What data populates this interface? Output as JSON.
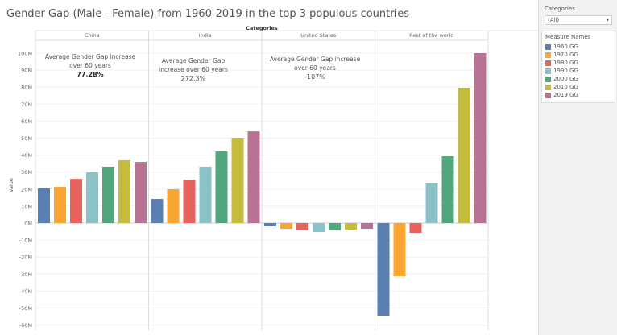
{
  "chart_data": {
    "type": "bar",
    "title": "Gender Gap (Male - Female) from 1960-2019 in the top 3 populous countries",
    "column_header": "Categories",
    "ylabel": "Value",
    "ylim": [
      -60,
      100
    ],
    "yticks": [
      "100M",
      "90M",
      "80M",
      "70M",
      "60M",
      "50M",
      "40M",
      "30M",
      "20M",
      "10M",
      "0M",
      "-10M",
      "-20M",
      "-30M",
      "-40M",
      "-50M",
      "-60M"
    ],
    "grid": true,
    "legend_position": "right",
    "categories": [
      "China",
      "India",
      "United States",
      "Rest of the world"
    ],
    "series": [
      {
        "name": "1960 GG",
        "color": "#5b7fb1",
        "values": [
          20.4,
          14.2,
          -1.9,
          -54.5
        ]
      },
      {
        "name": "1970 GG",
        "color": "#f9a531",
        "values": [
          21.3,
          19.9,
          -3.3,
          -31.3
        ]
      },
      {
        "name": "1980 GG",
        "color": "#e8625f",
        "values": [
          26,
          25.6,
          -4.3,
          -5.7
        ]
      },
      {
        "name": "1990 GG",
        "color": "#8bc2c8",
        "values": [
          29.9,
          33.2,
          -5.2,
          23.7
        ]
      },
      {
        "name": "2000 GG",
        "color": "#52a67e",
        "values": [
          33.2,
          42.2,
          -4.3,
          39.3
        ]
      },
      {
        "name": "2010 GG",
        "color": "#c5bb3e",
        "values": [
          37,
          50.2,
          -3.8,
          79.6
        ]
      },
      {
        "name": "2019 GG",
        "color": "#b87394",
        "values": [
          36,
          54,
          -3.3,
          100
        ]
      }
    ],
    "annotations": [
      {
        "text": "Average Gender Gap increase over 60 years",
        "value": "77.28%"
      },
      {
        "text": "Average Gender Gap increase over 60 years",
        "value": "272.3%"
      },
      {
        "text": "Average Gender Gap increase over 60 years",
        "value": "-107%"
      }
    ]
  },
  "filter": {
    "label": "Categories",
    "value": "(All)"
  },
  "legend_title": "Measure Names"
}
